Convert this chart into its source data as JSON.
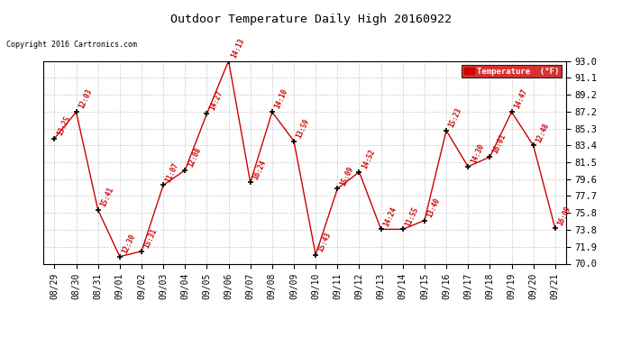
{
  "title": "Outdoor Temperature Daily High 20160922",
  "copyright": "Copyright 2016 Cartronics.com",
  "legend_label": "Temperature  (°F)",
  "ylim": [
    70.0,
    93.0
  ],
  "yticks": [
    70.0,
    71.9,
    73.8,
    75.8,
    77.7,
    79.6,
    81.5,
    83.4,
    85.3,
    87.2,
    89.2,
    91.1,
    93.0
  ],
  "ytick_labels": [
    "70.0",
    "71.9",
    "73.8",
    "75.8",
    "77.7",
    "79.6",
    "81.5",
    "83.4",
    "85.3",
    "87.2",
    "89.2",
    "91.1",
    "93.0"
  ],
  "dates": [
    "08/29",
    "08/30",
    "08/31",
    "09/01",
    "09/02",
    "09/03",
    "09/04",
    "09/05",
    "09/06",
    "09/07",
    "09/08",
    "09/09",
    "09/10",
    "09/11",
    "09/12",
    "09/13",
    "09/14",
    "09/15",
    "09/16",
    "09/17",
    "09/18",
    "09/19",
    "09/20",
    "09/21"
  ],
  "temperatures": [
    84.2,
    87.2,
    76.1,
    70.8,
    71.4,
    78.9,
    80.6,
    87.0,
    93.0,
    79.2,
    87.2,
    83.9,
    71.0,
    78.5,
    80.4,
    73.9,
    73.9,
    74.9,
    85.1,
    81.0,
    82.1,
    87.2,
    83.4,
    74.0
  ],
  "labels": [
    "13:25",
    "12:03",
    "15:41",
    "12:30",
    "15:31",
    "11:07",
    "12:08",
    "14:27",
    "14:13",
    "16:24",
    "14:10",
    "13:59",
    "15:43",
    "15:09",
    "14:52",
    "14:24",
    "11:55",
    "13:40",
    "15:23",
    "14:30",
    "16:01",
    "14:47",
    "12:48",
    "16:09"
  ],
  "line_color": "#cc0000",
  "marker_color": "#000000",
  "label_color": "#cc0000",
  "bg_color": "#ffffff",
  "grid_color": "#bbbbbb",
  "title_color": "#000000",
  "copyright_color": "#000000",
  "figsize": [
    6.9,
    3.75
  ],
  "dpi": 100
}
